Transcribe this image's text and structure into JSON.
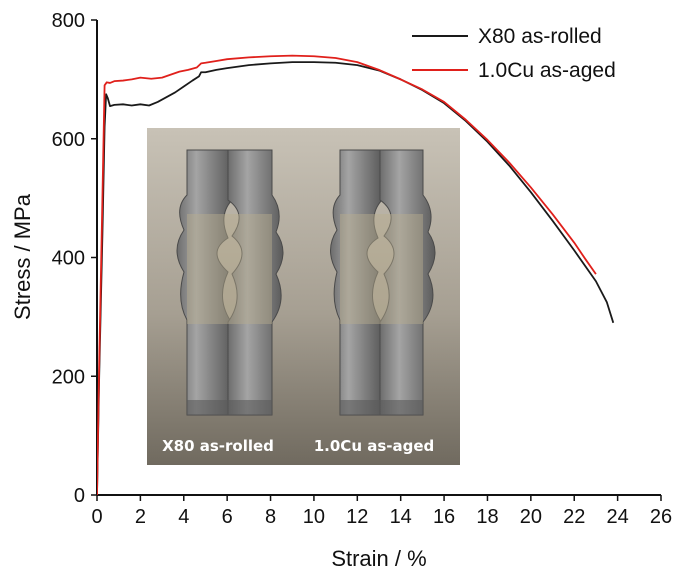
{
  "chart_data": {
    "type": "line",
    "title": "",
    "xlabel": "Strain / %",
    "ylabel": "Stress / MPa",
    "xlim": [
      0,
      26
    ],
    "ylim": [
      0,
      800
    ],
    "xticks": [
      0,
      2,
      4,
      6,
      8,
      10,
      12,
      14,
      16,
      18,
      20,
      22,
      24,
      26
    ],
    "yticks": [
      0,
      200,
      400,
      600,
      800
    ],
    "grid": false,
    "legend_position": "top-right",
    "series": [
      {
        "name": "X80 as-rolled",
        "color": "#1a1a1a",
        "x": [
          0,
          0.1,
          0.25,
          0.35,
          0.42,
          0.5,
          0.6,
          0.8,
          1.2,
          1.6,
          2.0,
          2.4,
          2.8,
          3.2,
          3.6,
          4.0,
          4.4,
          4.7,
          4.8,
          5.0,
          5.5,
          6.0,
          7.0,
          8.0,
          9.0,
          10.0,
          11.0,
          12.0,
          13.0,
          14.0,
          15.0,
          16.0,
          17.0,
          18.0,
          19.0,
          20.0,
          21.0,
          22.0,
          23.0,
          23.5,
          23.8
        ],
        "y": [
          0,
          200,
          440,
          620,
          675,
          668,
          655,
          657,
          658,
          656,
          658,
          656,
          662,
          670,
          678,
          688,
          698,
          705,
          712,
          712,
          716,
          719,
          724,
          727,
          729,
          729,
          728,
          724,
          715,
          700,
          682,
          660,
          630,
          595,
          555,
          510,
          462,
          412,
          360,
          325,
          290
        ]
      },
      {
        "name": "1.0Cu as-aged",
        "color": "#e0201b",
        "x": [
          0,
          0.1,
          0.25,
          0.35,
          0.45,
          0.6,
          0.8,
          1.2,
          1.6,
          2.0,
          2.5,
          3.0,
          3.4,
          3.8,
          4.2,
          4.6,
          4.8,
          5.0,
          5.5,
          6.0,
          7.0,
          8.0,
          9.0,
          10.0,
          11.0,
          12.0,
          13.0,
          14.0,
          15.0,
          16.0,
          17.0,
          18.0,
          19.0,
          20.0,
          21.0,
          22.0,
          22.5,
          23.0
        ],
        "y": [
          0,
          220,
          500,
          690,
          695,
          694,
          697,
          698,
          700,
          703,
          701,
          703,
          708,
          713,
          716,
          720,
          727,
          728,
          731,
          734,
          737,
          739,
          740,
          739,
          736,
          729,
          716,
          700,
          683,
          662,
          632,
          598,
          560,
          518,
          473,
          425,
          398,
          372
        ]
      }
    ],
    "inset_image": {
      "labels": [
        "X80 as-rolled",
        "1.0Cu as-aged"
      ]
    }
  }
}
